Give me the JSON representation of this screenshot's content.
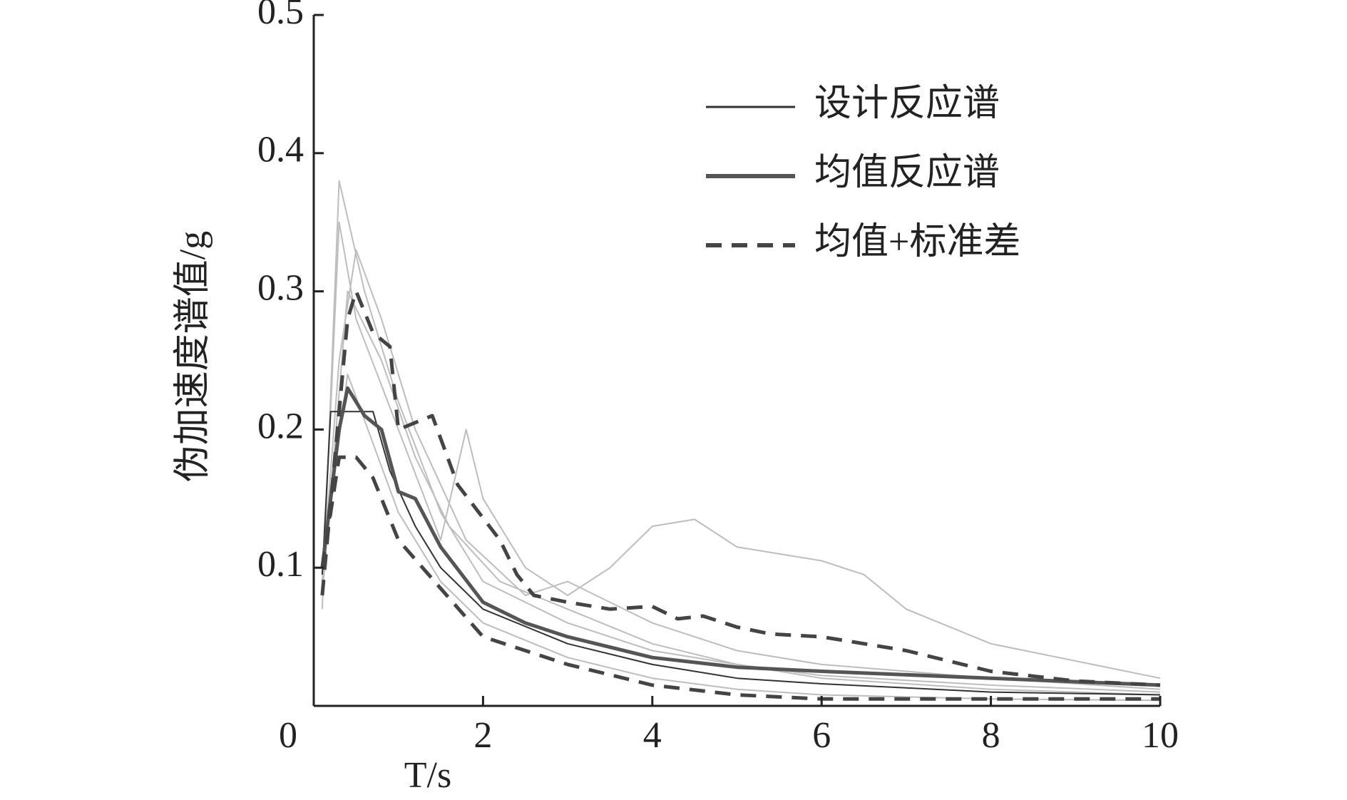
{
  "chart_data": {
    "type": "line",
    "x_label": "T/s",
    "y_label": "伪加速度谱值/g",
    "xlim": [
      0,
      10
    ],
    "ylim": [
      0,
      0.5
    ],
    "xticks": [
      0,
      2,
      4,
      6,
      8,
      10
    ],
    "yticks": [
      0.1,
      0.2,
      0.3,
      0.4,
      0.5
    ],
    "legend": "top-right",
    "series": [
      {
        "color": "#bdbdbd",
        "style": "thin",
        "x": [
          0.1,
          0.3,
          0.5,
          1,
          1.5,
          1.8,
          2,
          2.5,
          3,
          3.5,
          4,
          4.5,
          5,
          6,
          6.5,
          7,
          8,
          10
        ],
        "values": [
          0.08,
          0.35,
          0.28,
          0.2,
          0.12,
          0.2,
          0.15,
          0.1,
          0.08,
          0.1,
          0.13,
          0.135,
          0.115,
          0.105,
          0.095,
          0.07,
          0.045,
          0.02
        ]
      },
      {
        "color": "#bdbdbd",
        "style": "thin",
        "x": [
          0.1,
          0.3,
          0.6,
          1,
          1.5,
          2,
          3,
          4,
          5,
          6,
          8,
          10
        ],
        "values": [
          0.07,
          0.38,
          0.3,
          0.22,
          0.14,
          0.09,
          0.06,
          0.04,
          0.03,
          0.022,
          0.015,
          0.01
        ]
      },
      {
        "color": "#bdbdbd",
        "style": "thin",
        "x": [
          0.1,
          0.3,
          0.5,
          0.8,
          1.2,
          1.8,
          2.5,
          3,
          4,
          5,
          6,
          8,
          10
        ],
        "values": [
          0.09,
          0.25,
          0.33,
          0.28,
          0.2,
          0.12,
          0.08,
          0.09,
          0.06,
          0.04,
          0.03,
          0.02,
          0.012
        ]
      },
      {
        "color": "#bdbdbd",
        "style": "thin",
        "x": [
          0.1,
          0.4,
          0.7,
          1,
          1.5,
          2,
          3,
          4,
          5,
          6,
          8,
          10
        ],
        "values": [
          0.1,
          0.24,
          0.19,
          0.14,
          0.09,
          0.06,
          0.035,
          0.02,
          0.012,
          0.008,
          0.005,
          0.004
        ]
      },
      {
        "color": "#bdbdbd",
        "style": "thin",
        "x": [
          0.1,
          0.4,
          0.8,
          1.2,
          1.6,
          2.2,
          3,
          4,
          5,
          6,
          8,
          10
        ],
        "values": [
          0.08,
          0.3,
          0.25,
          0.18,
          0.13,
          0.09,
          0.07,
          0.045,
          0.03,
          0.02,
          0.012,
          0.008
        ]
      },
      {
        "name": "设计反应谱",
        "color": "#333333",
        "style": "thin",
        "x": [
          0.1,
          0.2,
          0.7,
          0.9,
          1.2,
          1.5,
          2,
          3,
          4,
          5,
          6,
          7,
          8,
          10
        ],
        "values": [
          0.095,
          0.213,
          0.213,
          0.17,
          0.13,
          0.1,
          0.07,
          0.045,
          0.03,
          0.02,
          0.016,
          0.013,
          0.01,
          0.008
        ]
      },
      {
        "name": "均值反应谱",
        "color": "#555555",
        "style": "thick",
        "x": [
          0.1,
          0.3,
          0.4,
          0.5,
          0.6,
          0.8,
          1,
          1.2,
          1.5,
          2,
          2.5,
          3,
          4,
          5,
          6,
          8,
          10
        ],
        "values": [
          0.1,
          0.2,
          0.23,
          0.22,
          0.21,
          0.2,
          0.155,
          0.15,
          0.115,
          0.075,
          0.06,
          0.05,
          0.035,
          0.028,
          0.025,
          0.02,
          0.015
        ]
      },
      {
        "name": "均值+标准差",
        "color": "#444444",
        "style": "dashed",
        "x": [
          0.1,
          0.4,
          0.5,
          0.7,
          0.9,
          1,
          1.4,
          1.7,
          2.2,
          2.4,
          2.6,
          3,
          3.5,
          4,
          4.3,
          4.6,
          5,
          5.4,
          6,
          7,
          8,
          9,
          10
        ],
        "values": [
          0.08,
          0.28,
          0.3,
          0.27,
          0.26,
          0.2,
          0.21,
          0.16,
          0.12,
          0.095,
          0.08,
          0.075,
          0.07,
          0.072,
          0.063,
          0.065,
          0.057,
          0.052,
          0.05,
          0.04,
          0.025,
          0.018,
          0.015
        ]
      },
      {
        "color": "#444444",
        "style": "dashed",
        "x": [
          0.1,
          0.3,
          0.5,
          0.7,
          1,
          1.5,
          2,
          3,
          4,
          5,
          6,
          8,
          10
        ],
        "values": [
          0.1,
          0.18,
          0.18,
          0.165,
          0.12,
          0.085,
          0.05,
          0.03,
          0.015,
          0.008,
          0.005,
          0.005,
          0.005
        ]
      }
    ]
  }
}
